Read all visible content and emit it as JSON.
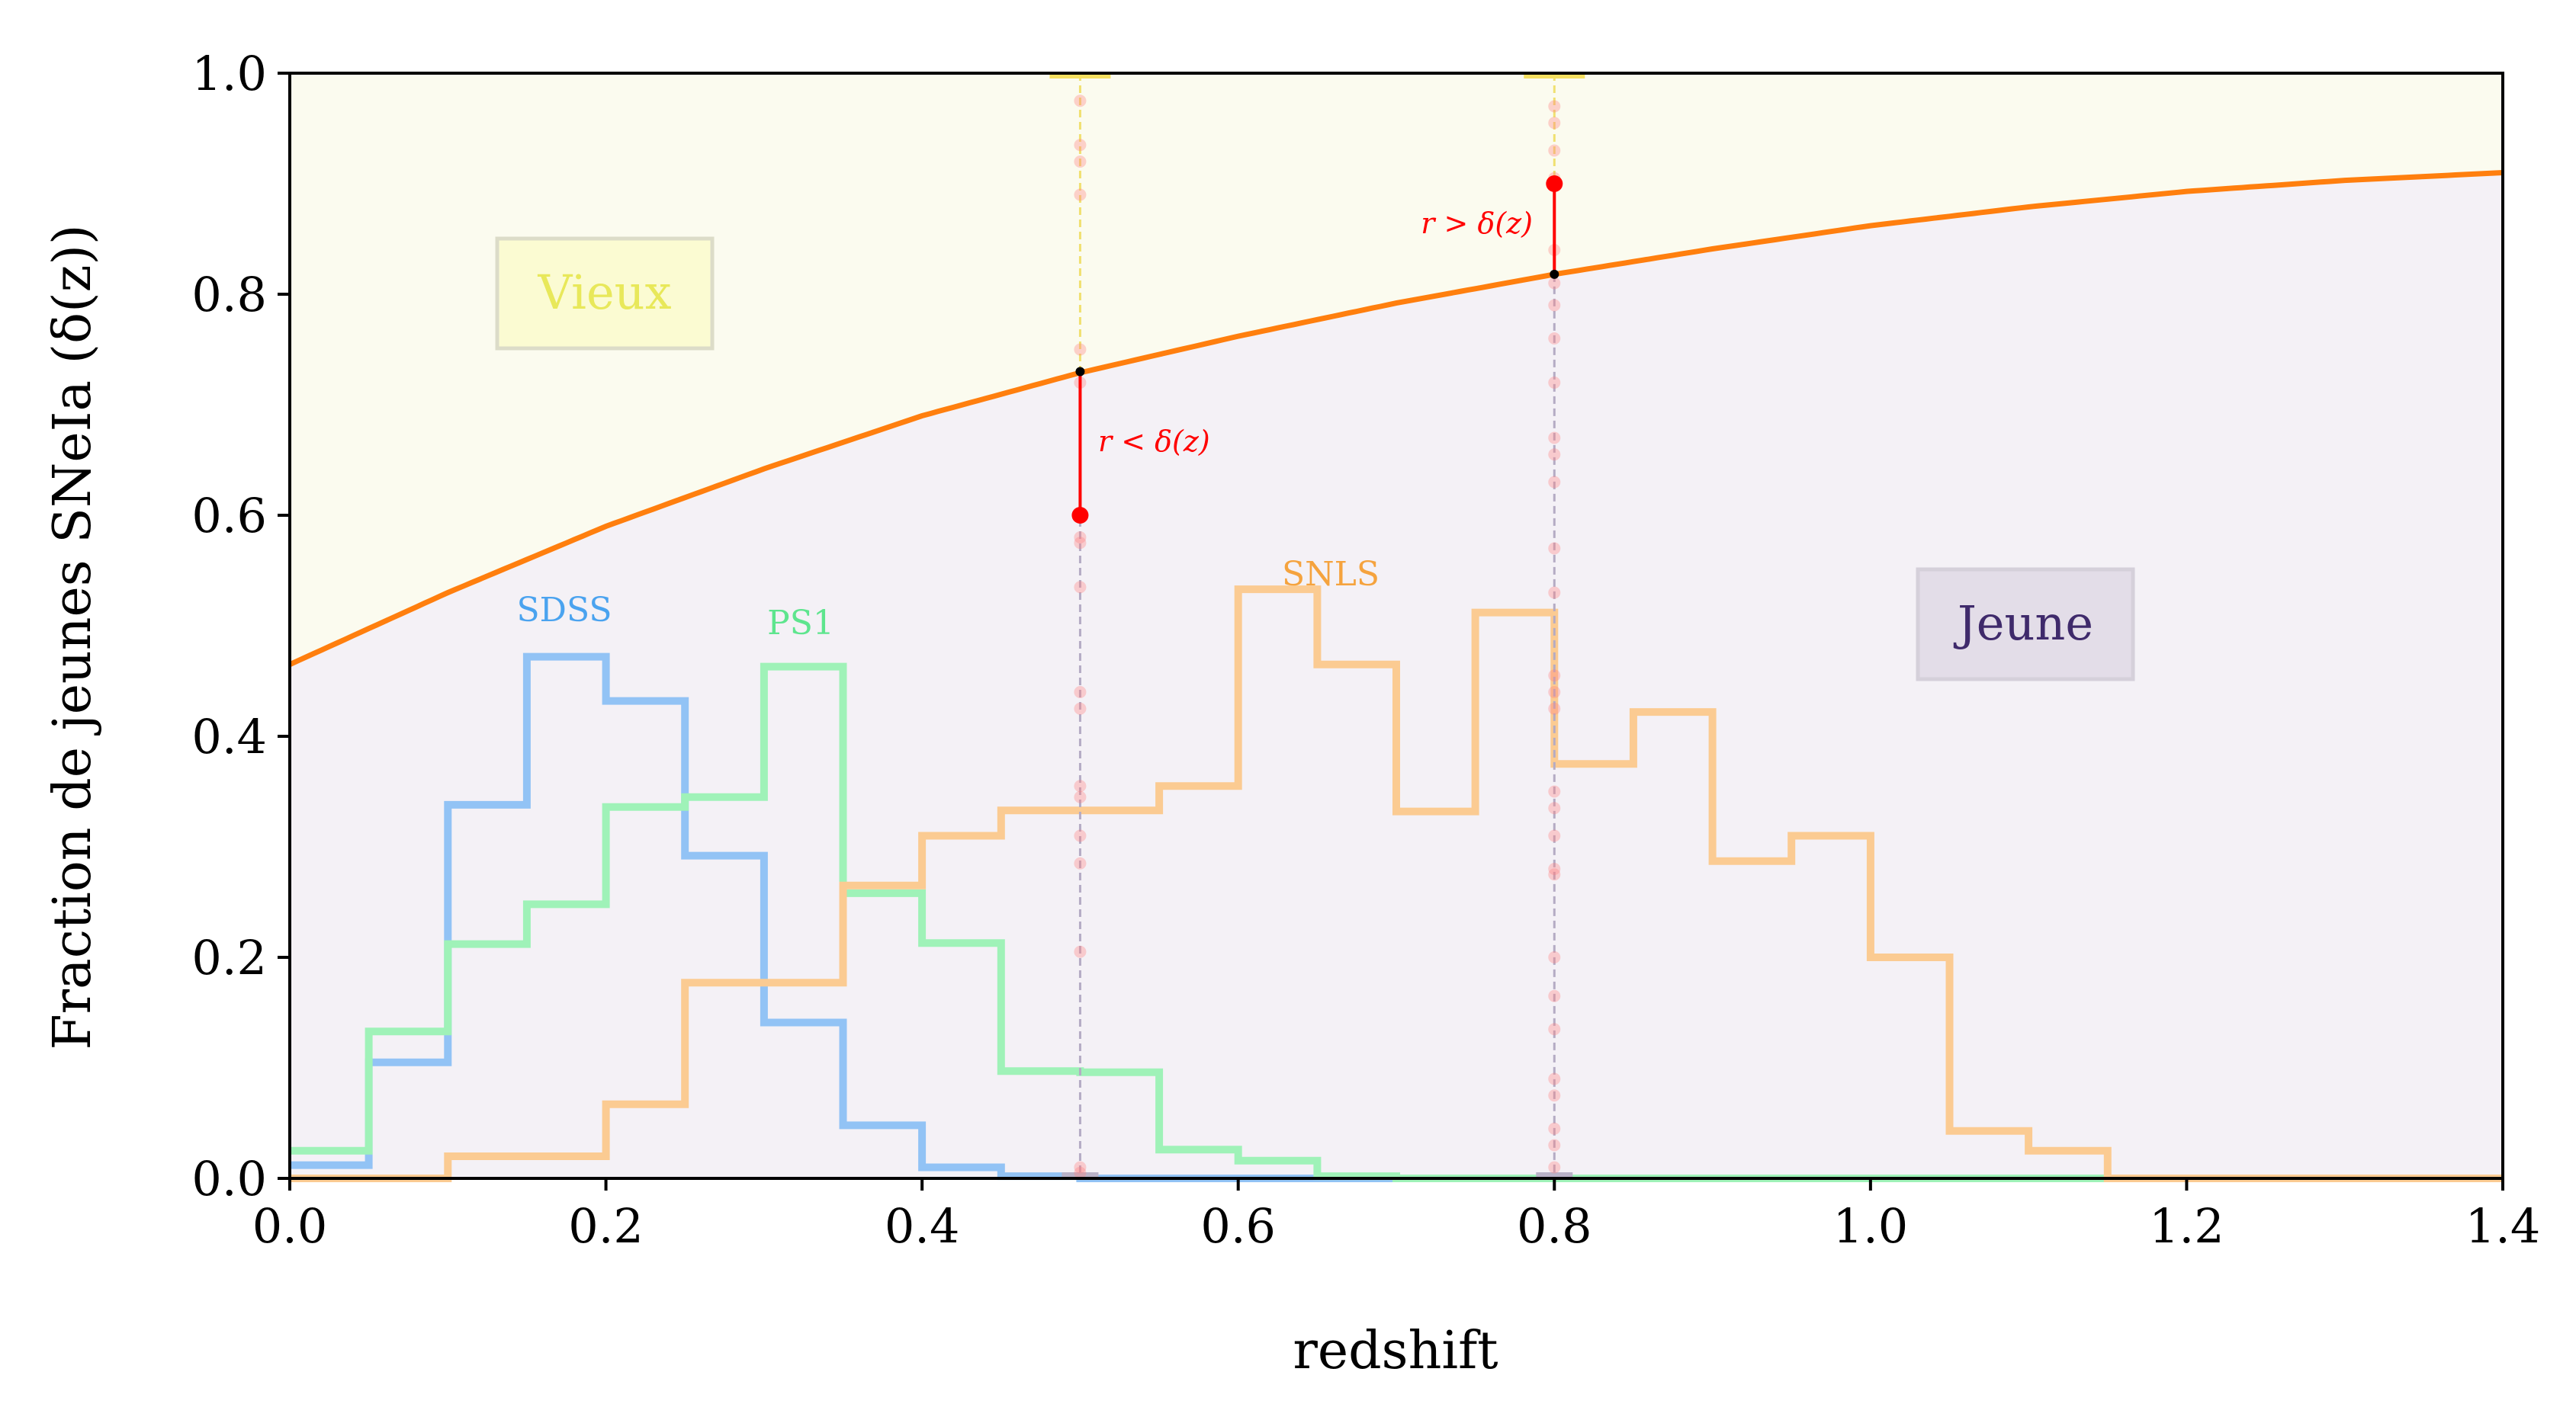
{
  "chart_data": {
    "type": "line",
    "xlabel": "redshift",
    "ylabel": "Fraction de jeunes SNeIa (δ(z))",
    "xlim": [
      0.0,
      1.4
    ],
    "ylim": [
      0.0,
      1.0
    ],
    "xticks": [
      "0.0",
      "0.2",
      "0.4",
      "0.6",
      "0.8",
      "1.0",
      "1.2",
      "1.4"
    ],
    "yticks": [
      "0.0",
      "0.2",
      "0.4",
      "0.6",
      "0.8",
      "1.0"
    ],
    "grid": false,
    "colors": {
      "delta": "#ff7f0e",
      "old_region": "#fbfbef",
      "young_region": "#f4f1f6",
      "sdss": "#92c3f5",
      "ps1": "#9ff2b8",
      "snls": "#fbcb92",
      "sdss_text": "#4aa3ef",
      "ps1_text": "#5ee58e",
      "snls_text": "#f5a33e",
      "old_text": "#e8e85a",
      "young_text": "#3f2a6b",
      "draw": "#ff0000"
    },
    "delta_curve": {
      "name": "δ(z)",
      "x": [
        0.0,
        0.1,
        0.2,
        0.3,
        0.4,
        0.5,
        0.6,
        0.7,
        0.8,
        0.9,
        1.0,
        1.1,
        1.2,
        1.3,
        1.4
      ],
      "y": [
        0.465,
        0.53,
        0.59,
        0.642,
        0.69,
        0.729,
        0.762,
        0.792,
        0.818,
        0.841,
        0.862,
        0.879,
        0.893,
        0.903,
        0.91
      ]
    },
    "histograms": {
      "bin_edges": [
        0.0,
        0.05,
        0.1,
        0.15,
        0.2,
        0.25,
        0.3,
        0.35,
        0.4,
        0.45,
        0.5,
        0.55,
        0.6,
        0.65,
        0.7,
        0.75,
        0.8,
        0.85,
        0.9,
        0.95,
        1.0,
        1.05,
        1.1,
        1.15,
        1.2,
        1.25,
        1.3,
        1.35,
        1.4
      ],
      "series": [
        {
          "name": "SDSS",
          "values": [
            0.012,
            0.105,
            0.338,
            0.472,
            0.432,
            0.292,
            0.141,
            0.048,
            0.01,
            0.002,
            0.0,
            0.0,
            0.0,
            0.0,
            0.0,
            0.0,
            0.0,
            0.0,
            0.0,
            0.0,
            0.0,
            0.0,
            0.0,
            0.0,
            0.0,
            0.0,
            0.0,
            0.0
          ]
        },
        {
          "name": "PS1",
          "values": [
            0.025,
            0.133,
            0.212,
            0.248,
            0.336,
            0.345,
            0.463,
            0.258,
            0.213,
            0.097,
            0.096,
            0.026,
            0.016,
            0.002,
            0.0,
            0.0,
            0.0,
            0.0,
            0.0,
            0.0,
            0.0,
            0.0,
            0.0,
            0.0,
            0.0,
            0.0,
            0.0,
            0.0
          ]
        },
        {
          "name": "SNLS",
          "values": [
            0.0,
            0.0,
            0.02,
            0.02,
            0.067,
            0.177,
            0.177,
            0.265,
            0.31,
            0.333,
            0.333,
            0.355,
            0.533,
            0.465,
            0.332,
            0.512,
            0.375,
            0.422,
            0.287,
            0.31,
            0.2,
            0.043,
            0.025,
            0.0,
            0.0,
            0.0,
            0.0,
            0.0
          ]
        }
      ]
    },
    "draws": [
      {
        "z": 0.5,
        "delta": 0.73,
        "r": 0.6,
        "label": "r < δ(z)"
      },
      {
        "z": 0.8,
        "delta": 0.818,
        "r": 0.9,
        "label": "r > δ(z)"
      }
    ],
    "sample_points": [
      {
        "z": 0.5,
        "r": [
          0.975,
          0.935,
          0.92,
          0.89,
          0.75,
          0.72,
          0.58,
          0.575,
          0.535,
          0.44,
          0.425,
          0.355,
          0.345,
          0.31,
          0.285,
          0.205,
          0.01,
          0.005
        ]
      },
      {
        "z": 0.8,
        "r": [
          0.97,
          0.955,
          0.93,
          0.905,
          0.84,
          0.81,
          0.79,
          0.76,
          0.72,
          0.67,
          0.655,
          0.63,
          0.57,
          0.53,
          0.455,
          0.44,
          0.425,
          0.35,
          0.335,
          0.31,
          0.28,
          0.275,
          0.2,
          0.165,
          0.135,
          0.09,
          0.075,
          0.045,
          0.03,
          0.01
        ]
      }
    ],
    "annotations": {
      "old": "Vieux",
      "young": "Jeune",
      "sdss": "SDSS",
      "ps1": "PS1",
      "snls": "SNLS"
    }
  }
}
